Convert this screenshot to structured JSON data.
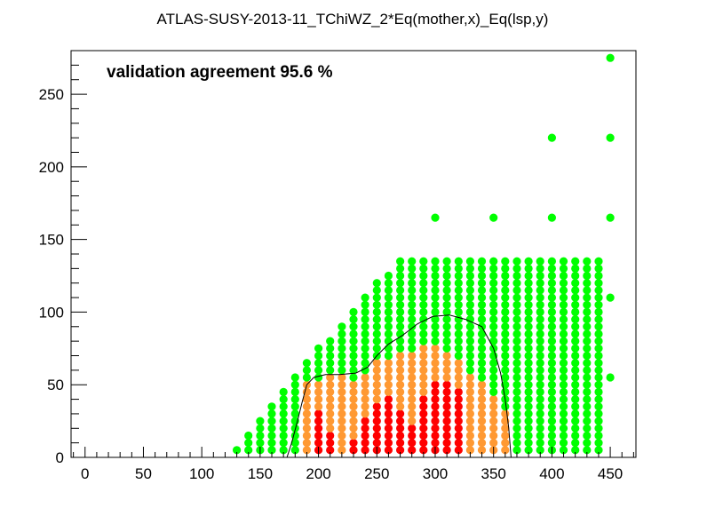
{
  "chart_data": {
    "type": "scatter",
    "title": "ATLAS-SUSY-2013-11_TChiWZ_2*Eq(mother,x)_Eq(lsp,y)",
    "annotation": "validation agreement 95.6 %",
    "xlabel": "",
    "ylabel": "",
    "xlim": [
      -12,
      472
    ],
    "ylim": [
      0,
      280
    ],
    "xticks": [
      0,
      50,
      100,
      150,
      200,
      250,
      300,
      350,
      400,
      450
    ],
    "yticks": [
      0,
      50,
      100,
      150,
      200,
      250
    ],
    "grid": false,
    "colors": {
      "allowed": "#00ff00",
      "excluded_near": "#ff9933",
      "excluded": "#ff0000",
      "contour": "#000000"
    },
    "point_grid": {
      "x_start": 130,
      "x_end": 440,
      "x_step": 10,
      "y_step": 5,
      "y_min": 5,
      "y_max": 135
    },
    "column_tops": [
      {
        "x": 130,
        "ymax": 5
      },
      {
        "x": 140,
        "ymax": 15
      },
      {
        "x": 150,
        "ymax": 25
      },
      {
        "x": 160,
        "ymax": 35
      },
      {
        "x": 170,
        "ymax": 45
      },
      {
        "x": 180,
        "ymax": 55
      },
      {
        "x": 190,
        "ymax": 65
      },
      {
        "x": 200,
        "ymax": 75
      },
      {
        "x": 210,
        "ymax": 80
      },
      {
        "x": 220,
        "ymax": 90
      },
      {
        "x": 230,
        "ymax": 100
      },
      {
        "x": 240,
        "ymax": 110
      },
      {
        "x": 250,
        "ymax": 120
      },
      {
        "x": 260,
        "ymax": 125
      },
      {
        "x": 270,
        "ymax": 135
      },
      {
        "x": 280,
        "ymax": 135
      },
      {
        "x": 290,
        "ymax": 135
      },
      {
        "x": 300,
        "ymax": 135
      },
      {
        "x": 310,
        "ymax": 135
      },
      {
        "x": 320,
        "ymax": 135
      },
      {
        "x": 330,
        "ymax": 135
      },
      {
        "x": 340,
        "ymax": 135
      },
      {
        "x": 350,
        "ymax": 135
      },
      {
        "x": 360,
        "ymax": 135
      },
      {
        "x": 370,
        "ymax": 135
      },
      {
        "x": 380,
        "ymax": 135
      },
      {
        "x": 390,
        "ymax": 135
      },
      {
        "x": 400,
        "ymax": 135
      },
      {
        "x": 410,
        "ymax": 135
      },
      {
        "x": 420,
        "ymax": 135
      },
      {
        "x": 430,
        "ymax": 135
      },
      {
        "x": 440,
        "ymax": 135
      }
    ],
    "orange_region": [
      {
        "x": 190,
        "ymin": 5,
        "ymax": 50
      },
      {
        "x": 200,
        "ymin": 5,
        "ymax": 50
      },
      {
        "x": 210,
        "ymin": 5,
        "ymax": 55
      },
      {
        "x": 220,
        "ymin": 5,
        "ymax": 55
      },
      {
        "x": 230,
        "ymin": 5,
        "ymax": 50
      },
      {
        "x": 240,
        "ymin": 5,
        "ymax": 55
      },
      {
        "x": 250,
        "ymin": 5,
        "ymax": 65
      },
      {
        "x": 260,
        "ymin": 5,
        "ymax": 65
      },
      {
        "x": 270,
        "ymin": 5,
        "ymax": 70
      },
      {
        "x": 280,
        "ymin": 5,
        "ymax": 70
      },
      {
        "x": 290,
        "ymin": 5,
        "ymax": 75
      },
      {
        "x": 300,
        "ymin": 5,
        "ymax": 75
      },
      {
        "x": 310,
        "ymin": 5,
        "ymax": 70
      },
      {
        "x": 320,
        "ymin": 5,
        "ymax": 65
      },
      {
        "x": 330,
        "ymin": 5,
        "ymax": 55
      },
      {
        "x": 340,
        "ymin": 5,
        "ymax": 50
      },
      {
        "x": 350,
        "ymin": 5,
        "ymax": 40
      },
      {
        "x": 360,
        "ymin": 5,
        "ymax": 30
      }
    ],
    "red_region": [
      {
        "x": 200,
        "ymin": 5,
        "ymax": 30
      },
      {
        "x": 210,
        "ymin": 5,
        "ymax": 15
      },
      {
        "x": 230,
        "ymin": 5,
        "ymax": 10
      },
      {
        "x": 240,
        "ymin": 5,
        "ymax": 25
      },
      {
        "x": 250,
        "ymin": 5,
        "ymax": 35
      },
      {
        "x": 260,
        "ymin": 5,
        "ymax": 40
      },
      {
        "x": 270,
        "ymin": 5,
        "ymax": 30
      },
      {
        "x": 280,
        "ymin": 5,
        "ymax": 20
      },
      {
        "x": 290,
        "ymin": 5,
        "ymax": 40
      },
      {
        "x": 300,
        "ymin": 5,
        "ymax": 50
      },
      {
        "x": 310,
        "ymin": 5,
        "ymax": 50
      },
      {
        "x": 320,
        "ymin": 5,
        "ymax": 45
      }
    ],
    "extra_points": [
      {
        "x": 300,
        "y": 165,
        "status": "allowed"
      },
      {
        "x": 350,
        "y": 165,
        "status": "allowed"
      },
      {
        "x": 400,
        "y": 165,
        "status": "allowed"
      },
      {
        "x": 450,
        "y": 165,
        "status": "allowed"
      },
      {
        "x": 400,
        "y": 220,
        "status": "allowed"
      },
      {
        "x": 450,
        "y": 220,
        "status": "allowed"
      },
      {
        "x": 450,
        "y": 275,
        "status": "allowed"
      },
      {
        "x": 450,
        "y": 110,
        "status": "allowed"
      },
      {
        "x": 450,
        "y": 55,
        "status": "allowed"
      }
    ],
    "contour": [
      [
        173,
        0
      ],
      [
        177,
        10
      ],
      [
        182,
        25
      ],
      [
        186,
        38
      ],
      [
        190,
        50
      ],
      [
        196,
        55
      ],
      [
        206,
        57
      ],
      [
        218,
        57
      ],
      [
        232,
        58
      ],
      [
        242,
        62
      ],
      [
        250,
        70
      ],
      [
        260,
        78
      ],
      [
        272,
        84
      ],
      [
        285,
        92
      ],
      [
        298,
        97
      ],
      [
        312,
        98
      ],
      [
        326,
        95
      ],
      [
        340,
        90
      ],
      [
        350,
        75
      ],
      [
        356,
        58
      ],
      [
        360,
        40
      ],
      [
        363,
        20
      ],
      [
        365,
        0
      ]
    ]
  }
}
